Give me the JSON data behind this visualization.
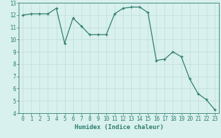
{
  "x": [
    0,
    1,
    2,
    3,
    4,
    5,
    6,
    7,
    8,
    9,
    10,
    11,
    12,
    13,
    14,
    15,
    16,
    17,
    18,
    19,
    20,
    21,
    22,
    23
  ],
  "y": [
    12.0,
    12.1,
    12.1,
    12.1,
    12.55,
    9.7,
    11.75,
    11.1,
    10.4,
    10.4,
    10.4,
    12.1,
    12.55,
    12.65,
    12.65,
    12.2,
    8.3,
    8.4,
    9.0,
    8.6,
    6.8,
    5.6,
    5.1,
    4.3
  ],
  "line_color": "#2e7d6e",
  "marker": "+",
  "markersize": 3,
  "linewidth": 0.9,
  "bg_color": "#d8f0ee",
  "grid_color": "#b8d8d4",
  "xlabel": "Humidex (Indice chaleur)",
  "xlim": [
    -0.5,
    23.5
  ],
  "ylim": [
    4,
    13
  ],
  "yticks": [
    4,
    5,
    6,
    7,
    8,
    9,
    10,
    11,
    12,
    13
  ],
  "xticks": [
    0,
    1,
    2,
    3,
    4,
    5,
    6,
    7,
    8,
    9,
    10,
    11,
    12,
    13,
    14,
    15,
    16,
    17,
    18,
    19,
    20,
    21,
    22,
    23
  ],
  "tick_labelsize": 5.5,
  "xlabel_fontsize": 6.5
}
